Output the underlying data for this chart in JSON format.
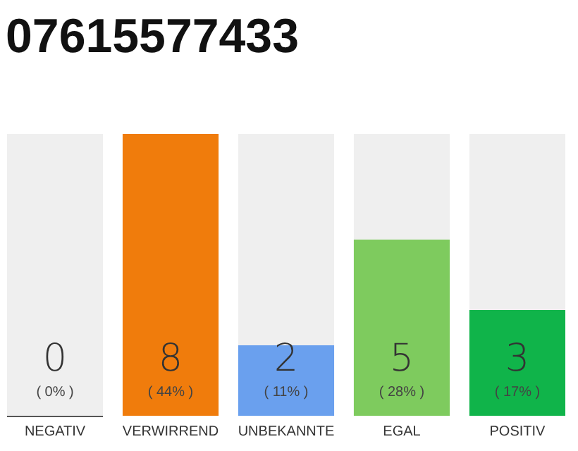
{
  "chart_data": {
    "type": "bar",
    "title": "07615577433",
    "categories": [
      "NEGATIV",
      "VERWIRREND",
      "UNBEKANNTE",
      "EGAL",
      "POSITIV"
    ],
    "values": [
      0,
      8,
      2,
      5,
      3
    ],
    "colors": [
      "#555555",
      "#f07c0c",
      "#6aa0ee",
      "#7ecb5e",
      "#10b44a"
    ],
    "data_labels": true,
    "annotations": [
      "( 0% )",
      "( 44% )",
      "( 11% )",
      "( 28% )",
      "( 17% )"
    ]
  }
}
